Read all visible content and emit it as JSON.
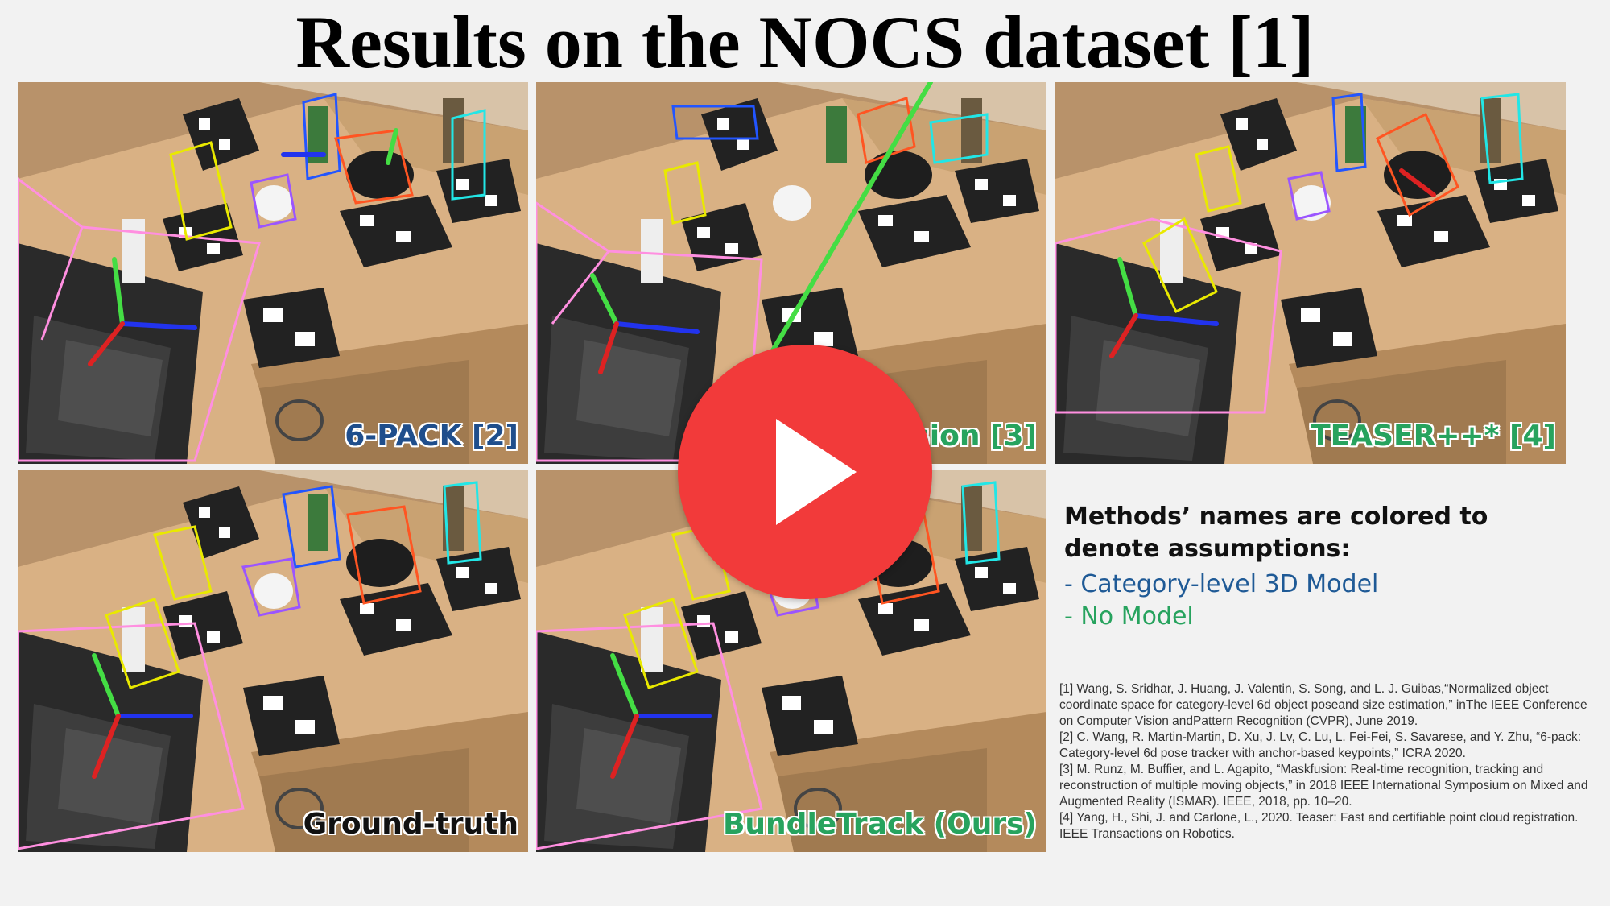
{
  "title": "Results on the NOCS dataset [1]",
  "panels": [
    {
      "label": "6-PACK [2]",
      "color": "blue"
    },
    {
      "label": "sion [3]",
      "color": "green"
    },
    {
      "label": "TEASER++* [4]",
      "color": "green"
    },
    {
      "label": "Ground-truth",
      "color": "black"
    },
    {
      "label": "BundleTrack (Ours)",
      "color": "green"
    }
  ],
  "legend": {
    "heading": "Methods’ names are colored to denote assumptions:",
    "category_level": "- Category-level 3D Model",
    "no_model": "- No Model"
  },
  "references": [
    "[1] Wang, S. Sridhar, J. Huang, J. Valentin, S. Song, and L. J. Guibas,“Normalized object coordinate space for category-level 6d object poseand size estimation,” inThe IEEE Conference on Computer Vision andPattern Recognition (CVPR), June 2019.",
    "[2] C. Wang, R. Martin-Martin, D. Xu, J. Lv, C. Lu, L. Fei-Fei, S. Savarese, and Y. Zhu, “6-pack: Category-level 6d pose tracker with anchor-based keypoints,” ICRA 2020.",
    "[3] M. Runz, M. Buffier, and L. Agapito, “Maskfusion: Real-time recognition, tracking and reconstruction of multiple moving objects,” in 2018 IEEE International Symposium on Mixed and Augmented Reality (ISMAR). IEEE, 2018, pp. 10–20.",
    "[4] Yang, H., Shi, J. and Carlone, L., 2020. Teaser: Fast and certifiable point cloud registration. IEEE Transactions on Robotics."
  ],
  "colors": {
    "category_level": "#1f5a96",
    "no_model": "#27a35e",
    "play_button": "#f23a3a"
  },
  "play_icon": "play-icon"
}
